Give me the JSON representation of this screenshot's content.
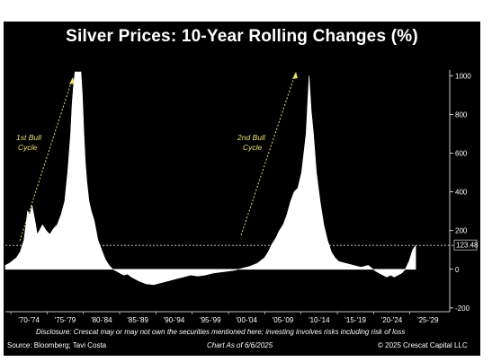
{
  "chart_data": {
    "type": "area",
    "title": "Silver Prices: 10-Year Rolling Changes (%)",
    "xlabel": "",
    "ylabel": "",
    "x_range": [
      1970,
      2030
    ],
    "ylim": [
      -210,
      1020
    ],
    "y_ticks": [
      -200,
      0,
      200,
      400,
      600,
      800,
      1000
    ],
    "y_tick_labels": [
      "-200",
      "0",
      "200",
      "400",
      "600",
      "800",
      "1000"
    ],
    "x_tick_labels": [
      "'70-'74",
      "'75-'79",
      "'80-'84",
      "'85-'89",
      "'90-'94",
      "'95-'99",
      "'00-'04",
      "'05-'09",
      "'10-'14",
      "'15-'19",
      "'20-'24",
      "'25-'29"
    ],
    "grid": false,
    "latest_value": 123.48,
    "latest_label": "123.48",
    "series": [
      {
        "x": [
          1970.0,
          1970.5,
          1971.0,
          1971.5,
          1972.0,
          1972.5,
          1973.0,
          1973.3,
          1973.6,
          1974.0,
          1974.3,
          1974.6,
          1975.0,
          1975.5,
          1976.0,
          1976.5,
          1977.0,
          1977.5,
          1978.0,
          1978.4,
          1978.8,
          1979.0,
          1979.2,
          1979.4,
          1979.6,
          1979.8,
          1980.0,
          1980.2,
          1980.4,
          1980.6,
          1980.8,
          1981.0,
          1981.3,
          1981.6,
          1982.0,
          1982.5,
          1983.0,
          1983.5,
          1984.0,
          1984.5,
          1985.0,
          1985.5,
          1986.0,
          1986.5,
          1987.0,
          1988.0,
          1989.0,
          1990.0,
          1991.0,
          1992.0,
          1993.0,
          1994.0,
          1995.0,
          1996.0,
          1997.0,
          1998.0,
          1999.0,
          2000.0,
          2001.0,
          2002.0,
          2003.0,
          2004.0,
          2005.0,
          2005.5,
          2006.0,
          2006.5,
          2007.0,
          2007.5,
          2008.0,
          2008.5,
          2009.0,
          2009.5,
          2010.0,
          2010.3,
          2010.6,
          2011.0,
          2011.3,
          2011.6,
          2012.0,
          2012.5,
          2013.0,
          2013.5,
          2014.0,
          2014.5,
          2015.0,
          2016.0,
          2017.0,
          2018.0,
          2019.0,
          2020.0,
          2020.5,
          2021.0,
          2021.5,
          2022.0,
          2022.5,
          2023.0,
          2023.5,
          2024.0,
          2024.5,
          2025.0,
          2025.4
        ],
        "values": [
          20,
          30,
          45,
          60,
          90,
          150,
          300,
          280,
          330,
          250,
          180,
          200,
          230,
          200,
          180,
          210,
          230,
          280,
          350,
          500,
          700,
          850,
          950,
          1020,
          1020,
          1020,
          1020,
          1020,
          900,
          700,
          550,
          450,
          350,
          300,
          250,
          150,
          100,
          50,
          20,
          0,
          -10,
          -20,
          -30,
          -25,
          -40,
          -60,
          -75,
          -80,
          -70,
          -60,
          -50,
          -40,
          -30,
          -35,
          -30,
          -20,
          -15,
          -10,
          -5,
          5,
          15,
          30,
          60,
          90,
          130,
          160,
          200,
          230,
          280,
          350,
          400,
          420,
          500,
          600,
          700,
          1000,
          820,
          700,
          500,
          350,
          230,
          150,
          90,
          60,
          40,
          30,
          20,
          10,
          20,
          -10,
          -20,
          -30,
          -40,
          -30,
          -40,
          -30,
          -20,
          0,
          40,
          100,
          123.48
        ]
      }
    ]
  },
  "annotations": {
    "cycle1_line1": "1st Bull",
    "cycle1_line2": "Cycle",
    "cycle2_line1": "2nd Bull",
    "cycle2_line2": "Cycle"
  },
  "footer": {
    "disclosure": "Disclosure: Crescat may or may not own the securities mentioned here; investing involves risks including risk of loss",
    "source": "Source: Bloomberg; Tavi Costa",
    "chart_as_of": "Chart As of 6/6/2025",
    "copyright": "© 2025 Crescat Capital LLC"
  },
  "colors": {
    "background": "#000000",
    "area": "#ffffff",
    "annotation": "#e8e070"
  }
}
